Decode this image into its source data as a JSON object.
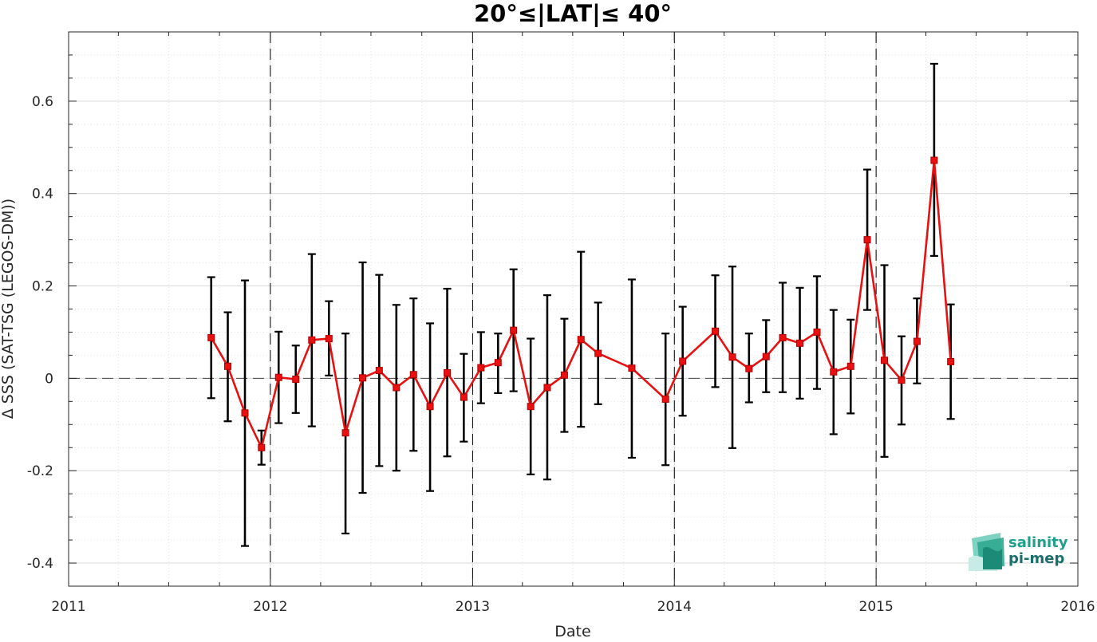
{
  "chart_data": {
    "type": "line",
    "title": "20°≤|LAT|≤ 40°",
    "xlabel": "Date",
    "ylabel": "Δ SSS (SAT-TSG (LEGOS-DM))",
    "xlim": [
      "2011-01-01",
      "2016-01-01"
    ],
    "ylim": [
      -0.45,
      0.75
    ],
    "x_ticks": [
      "2011",
      "2012",
      "2013",
      "2014",
      "2015",
      "2016"
    ],
    "y_ticks": [
      -0.4,
      -0.2,
      0,
      0.2,
      0.4,
      0.6
    ],
    "y_tick_labels": [
      "-0.4",
      "-0.2",
      "0",
      "0.2",
      "0.4",
      "0.6"
    ],
    "grid": true,
    "reference_line_y": 0,
    "year_boundaries": [
      "2012-01-01",
      "2013-01-01",
      "2014-01-01",
      "2015-01-01"
    ],
    "colors": {
      "line": "#e81010",
      "marker": "#e81010",
      "errorbar": "#000000",
      "brand_teal": "#1fa08c"
    },
    "series": [
      {
        "x": [
          "2011-09-16",
          "2011-10-16",
          "2011-11-16",
          "2011-12-16",
          "2012-01-16",
          "2012-02-16",
          "2012-03-16",
          "2012-04-16",
          "2012-05-16",
          "2012-06-16",
          "2012-07-16",
          "2012-08-16",
          "2012-09-16",
          "2012-10-16",
          "2012-11-16",
          "2012-12-16",
          "2013-01-16",
          "2013-02-16",
          "2013-03-16",
          "2013-04-16",
          "2013-05-16",
          "2013-06-16",
          "2013-07-16",
          "2013-08-16",
          "2013-10-16",
          "2013-12-16",
          "2014-01-16",
          "2014-03-16",
          "2014-04-16",
          "2014-05-16",
          "2014-06-16",
          "2014-07-16",
          "2014-08-16",
          "2014-09-16",
          "2014-10-16",
          "2014-11-16",
          "2014-12-16",
          "2015-01-16",
          "2015-02-16",
          "2015-03-16",
          "2015-04-16",
          "2015-05-16"
        ],
        "y": [
          0.088,
          0.026,
          -0.075,
          -0.15,
          0.002,
          -0.002,
          0.083,
          0.086,
          -0.118,
          0.001,
          0.017,
          -0.02,
          0.008,
          -0.061,
          0.012,
          -0.041,
          0.023,
          0.034,
          0.104,
          -0.061,
          -0.02,
          0.007,
          0.084,
          0.054,
          0.022,
          -0.045,
          0.037,
          0.102,
          0.046,
          0.021,
          0.047,
          0.088,
          0.076,
          0.1,
          0.014,
          0.026,
          0.3,
          0.039,
          -0.004,
          0.08,
          0.472,
          0.036
        ],
        "err_lower": [
          -0.043,
          -0.093,
          -0.363,
          -0.187,
          -0.097,
          -0.075,
          -0.104,
          0.006,
          -0.336,
          -0.248,
          -0.19,
          -0.2,
          -0.157,
          -0.244,
          -0.169,
          -0.137,
          -0.054,
          -0.032,
          -0.028,
          -0.208,
          -0.219,
          -0.116,
          -0.105,
          -0.056,
          -0.172,
          -0.188,
          -0.081,
          -0.019,
          -0.151,
          -0.052,
          -0.03,
          -0.03,
          -0.044,
          -0.023,
          -0.121,
          -0.076,
          0.148,
          -0.17,
          -0.1,
          -0.011,
          0.265,
          -0.088
        ],
        "err_upper": [
          0.219,
          0.143,
          0.212,
          -0.113,
          0.101,
          0.071,
          0.269,
          0.167,
          0.097,
          0.251,
          0.224,
          0.159,
          0.173,
          0.119,
          0.194,
          0.053,
          0.1,
          0.097,
          0.236,
          0.086,
          0.18,
          0.129,
          0.274,
          0.164,
          0.214,
          0.097,
          0.155,
          0.223,
          0.242,
          0.097,
          0.126,
          0.207,
          0.196,
          0.221,
          0.148,
          0.127,
          0.452,
          0.245,
          0.091,
          0.173,
          0.681,
          0.16
        ]
      }
    ]
  },
  "logo": {
    "line1": "salinity",
    "line2": "pi-mep"
  }
}
